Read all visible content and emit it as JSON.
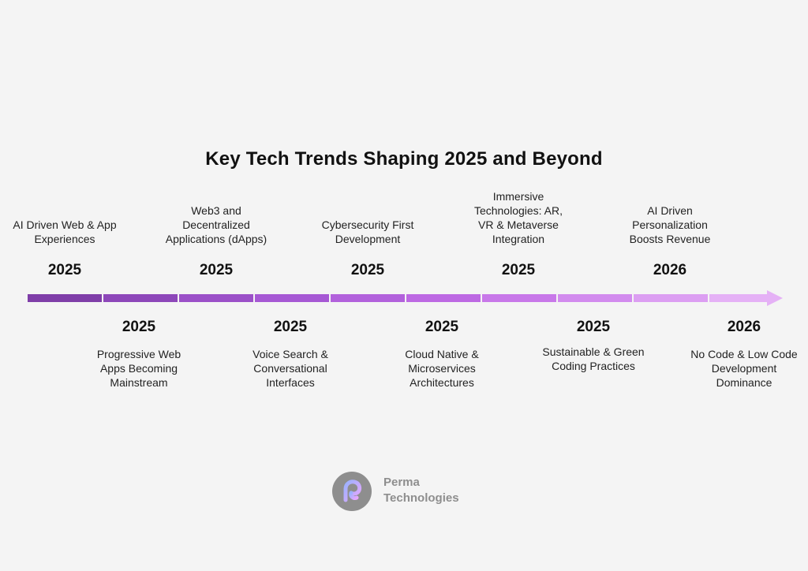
{
  "title": "Key Tech Trends Shaping 2025 and Beyond",
  "timeline": {
    "items": [
      {
        "year": "2025",
        "label": "AI Driven Web & App Experiences",
        "position": "top"
      },
      {
        "year": "2025",
        "label": "Progressive Web Apps Becoming Mainstream",
        "position": "bottom"
      },
      {
        "year": "2025",
        "label": "Web3 and Decentralized Applications (dApps)",
        "position": "top"
      },
      {
        "year": "2025",
        "label": "Voice Search & Conversational Interfaces",
        "position": "bottom"
      },
      {
        "year": "2025",
        "label": "Cybersecurity First Development",
        "position": "top"
      },
      {
        "year": "2025",
        "label": "Cloud Native & Microservices Architectures",
        "position": "bottom"
      },
      {
        "year": "2025",
        "label": "Immersive Technologies: AR, VR & Metaverse Integration",
        "position": "top"
      },
      {
        "year": "2025",
        "label": "Sustainable & Green Coding Practices",
        "position": "bottom"
      },
      {
        "year": "2026",
        "label": "AI Driven Personalization Boosts Revenue",
        "position": "top"
      },
      {
        "year": "2026",
        "label": "No Code & Low Code Development Dominance",
        "position": "bottom"
      }
    ],
    "colors": [
      "#7f3ea8",
      "#8d47b9",
      "#9b50c8",
      "#a658d4",
      "#b261dc",
      "#bd69e3",
      "#c878e9",
      "#d28bee",
      "#dc9ef2",
      "#e5b1f6"
    ]
  },
  "logo": {
    "line1": "Perma",
    "line2": "Technologies",
    "circle_color": "#8e8e8e",
    "mark_gradient": [
      "#9bb2ff",
      "#e7a6ff"
    ]
  }
}
